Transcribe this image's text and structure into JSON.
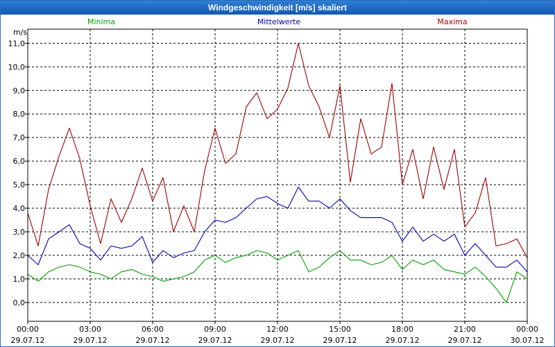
{
  "window": {
    "title": "Windgeschwindigkeit [m/s] skaliert"
  },
  "chart_data": {
    "type": "line",
    "title": "Windgeschwindigkeit [m/s] skaliert",
    "ylabel": "m/s",
    "ylim": [
      -0.8,
      11.6
    ],
    "xlim_hours": [
      0,
      24
    ],
    "y_ticks": [
      "0,0",
      "1,0",
      "2,0",
      "3,0",
      "4,0",
      "5,0",
      "6,0",
      "7,0",
      "8,0",
      "9,0",
      "10,0",
      "11,0"
    ],
    "x_ticks": [
      {
        "time": "00:00",
        "date": "29.07.12"
      },
      {
        "time": "03:00",
        "date": "29.07.12"
      },
      {
        "time": "06:00",
        "date": "29.07.12"
      },
      {
        "time": "09:00",
        "date": "29.07.12"
      },
      {
        "time": "12:00",
        "date": "29.07.12"
      },
      {
        "time": "15:00",
        "date": "29.07.12"
      },
      {
        "time": "18:00",
        "date": "29.07.12"
      },
      {
        "time": "21:00",
        "date": "29.07.12"
      },
      {
        "time": "00:00",
        "date": "30.07.12"
      }
    ],
    "legend": [
      {
        "name": "Minima",
        "color": "#00a000",
        "position": "top-left"
      },
      {
        "name": "Mittelwerte",
        "color": "#0000b0",
        "position": "top-center"
      },
      {
        "name": "Maxima",
        "color": "#a00000",
        "position": "top-right"
      }
    ],
    "series": [
      {
        "name": "Maxima",
        "color": "#a00000",
        "x_hours": [
          0,
          0.5,
          1,
          1.5,
          2,
          2.5,
          3,
          3.5,
          4,
          4.5,
          5,
          5.5,
          6,
          6.5,
          7,
          7.5,
          8,
          8.5,
          9,
          9.5,
          10,
          10.5,
          11,
          11.5,
          12,
          12.5,
          13,
          13.5,
          14,
          14.5,
          15,
          15.5,
          16,
          16.5,
          17,
          17.5,
          18,
          18.5,
          19,
          19.5,
          20,
          20.5,
          21,
          21.5,
          22,
          22.5,
          23,
          23.5,
          24
        ],
        "values": [
          3.8,
          2.4,
          4.8,
          6.2,
          7.4,
          6.1,
          4.1,
          2.5,
          4.4,
          3.4,
          4.4,
          5.7,
          4.3,
          5.3,
          3.0,
          4.1,
          3.0,
          5.6,
          7.4,
          5.9,
          6.3,
          8.3,
          8.9,
          7.8,
          8.2,
          9.1,
          11.0,
          9.2,
          8.3,
          7.0,
          9.2,
          5.1,
          7.8,
          6.3,
          6.6,
          9.3,
          5.0,
          6.5,
          4.4,
          6.6,
          4.8,
          6.5,
          3.2,
          3.8,
          5.3,
          2.4,
          2.5,
          2.7,
          1.9
        ]
      },
      {
        "name": "Mittelwerte",
        "color": "#0000b0",
        "x_hours": [
          0,
          0.5,
          1,
          1.5,
          2,
          2.5,
          3,
          3.5,
          4,
          4.5,
          5,
          5.5,
          6,
          6.5,
          7,
          7.5,
          8,
          8.5,
          9,
          9.5,
          10,
          10.5,
          11,
          11.5,
          12,
          12.5,
          13,
          13.5,
          14,
          14.5,
          15,
          15.5,
          16,
          16.5,
          17,
          17.5,
          18,
          18.5,
          19,
          19.5,
          20,
          20.5,
          21,
          21.5,
          22,
          22.5,
          23,
          23.5,
          24
        ],
        "values": [
          2.0,
          1.6,
          2.7,
          3.0,
          3.3,
          2.5,
          2.3,
          1.8,
          2.4,
          2.3,
          2.4,
          2.8,
          1.7,
          2.2,
          1.9,
          2.1,
          2.2,
          3.0,
          3.5,
          3.4,
          3.6,
          4.0,
          4.4,
          4.5,
          4.2,
          4.0,
          4.9,
          4.3,
          4.3,
          4.0,
          4.4,
          3.9,
          3.6,
          3.6,
          3.6,
          3.4,
          2.6,
          3.2,
          2.6,
          2.9,
          2.6,
          2.9,
          2.0,
          2.5,
          2.0,
          1.5,
          1.5,
          1.8,
          1.3
        ]
      },
      {
        "name": "Minima",
        "color": "#00a000",
        "x_hours": [
          0,
          0.5,
          1,
          1.5,
          2,
          2.5,
          3,
          3.5,
          4,
          4.5,
          5,
          5.5,
          6,
          6.5,
          7,
          7.5,
          8,
          8.5,
          9,
          9.5,
          10,
          10.5,
          11,
          11.5,
          12,
          12.5,
          13,
          13.5,
          14,
          14.5,
          15,
          15.5,
          16,
          16.5,
          17,
          17.5,
          18,
          18.5,
          19,
          19.5,
          20,
          20.5,
          21,
          21.5,
          22,
          22.5,
          23,
          23.5,
          24
        ],
        "values": [
          1.2,
          0.9,
          1.3,
          1.5,
          1.6,
          1.5,
          1.3,
          1.2,
          1.0,
          1.3,
          1.4,
          1.2,
          1.1,
          0.9,
          1.0,
          1.1,
          1.3,
          1.8,
          2.0,
          1.7,
          1.9,
          2.0,
          2.2,
          2.1,
          1.8,
          2.0,
          2.2,
          1.3,
          1.5,
          1.9,
          2.2,
          1.8,
          1.8,
          1.6,
          1.7,
          2.0,
          1.4,
          1.8,
          1.6,
          1.8,
          1.4,
          1.3,
          1.2,
          1.5,
          1.1,
          0.6,
          0.0,
          1.3,
          1.0
        ]
      }
    ]
  }
}
